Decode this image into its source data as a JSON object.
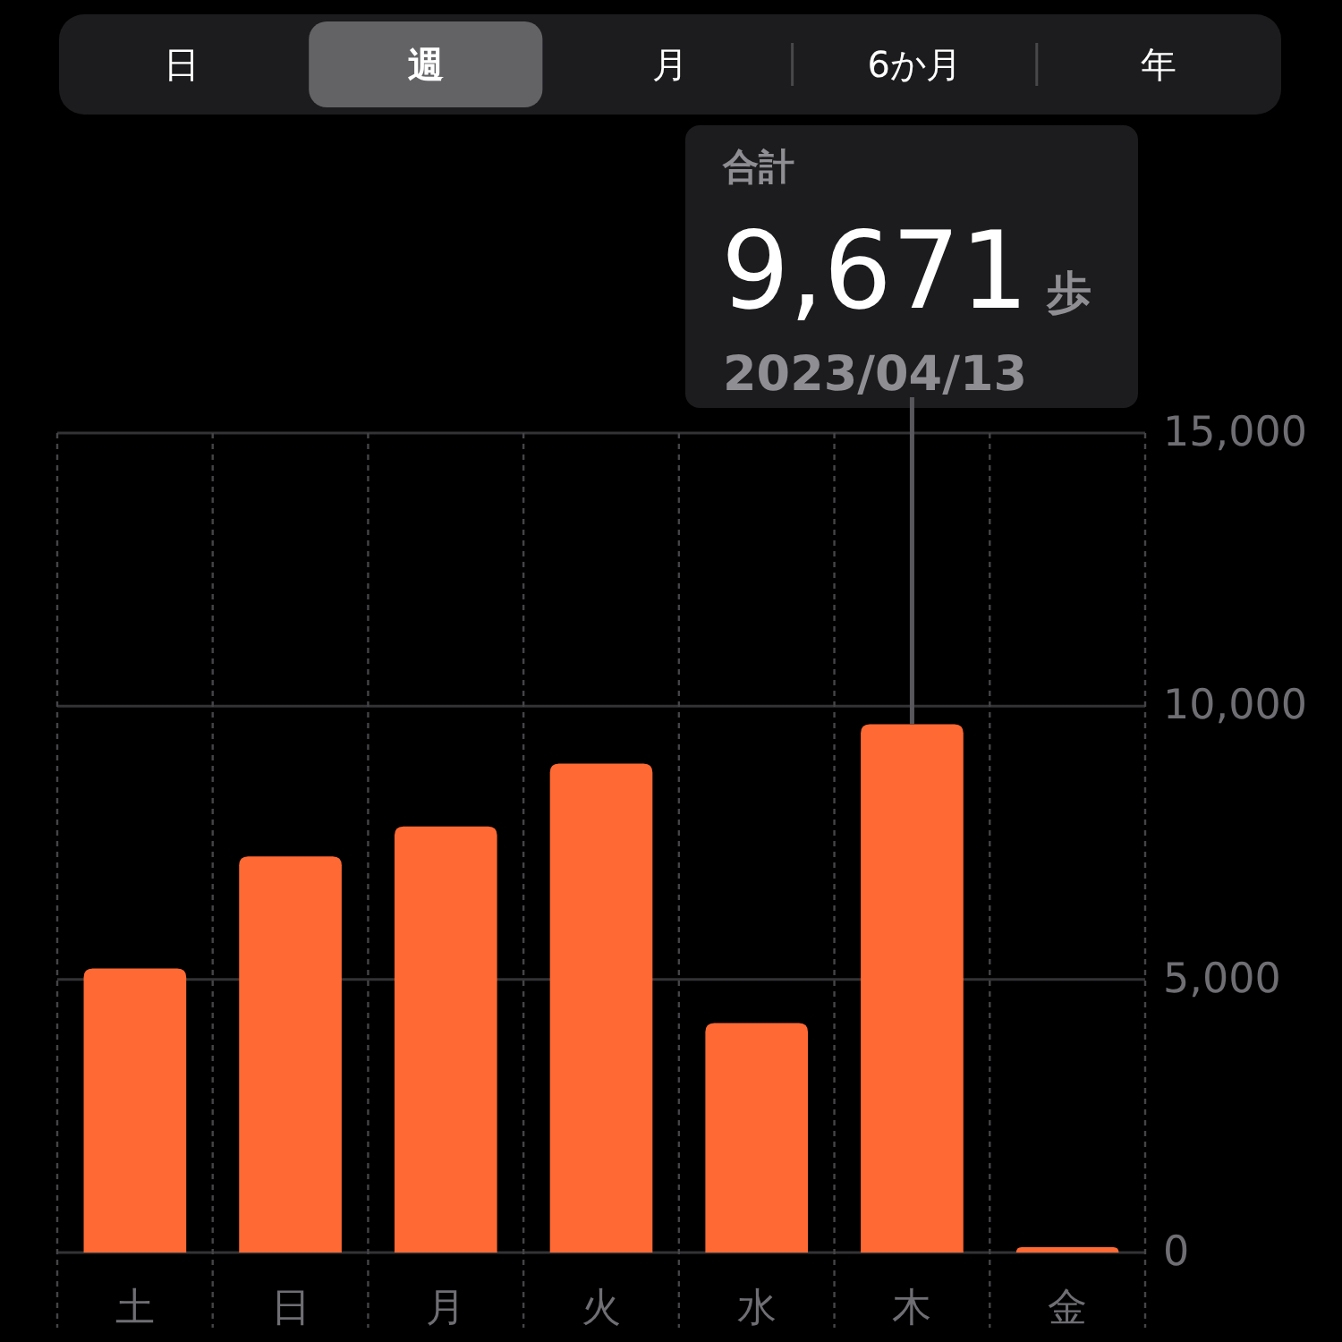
{
  "chart_data": {
    "type": "bar",
    "categories": [
      "土",
      "日",
      "月",
      "火",
      "水",
      "木",
      "金"
    ],
    "values": [
      5200,
      7250,
      7800,
      8950,
      4200,
      9671,
      100
    ],
    "value_labels": [
      null,
      null,
      null,
      null,
      null,
      "9,671",
      null
    ],
    "color": "#ff6934",
    "ylim": [
      0,
      15000
    ],
    "yticks": [
      0,
      {
        "value": 5000,
        "label": "5,000"
      },
      {
        "value": 10000,
        "label": "10,000"
      },
      {
        "value": 15000,
        "label": "15,000"
      }
    ],
    "grid": true,
    "annotations": [
      "日",
      "週",
      "月",
      "6か月",
      "年",
      "合計",
      "歩",
      {
        "text": "2023/04/13",
        "x": "木",
        "y": 9671
      }
    ]
  }
}
